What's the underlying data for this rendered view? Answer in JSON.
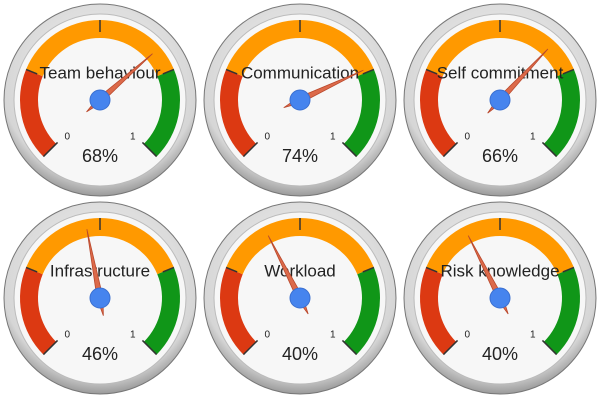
{
  "chart_data": [
    {
      "type": "gauge",
      "title": "Team behaviour",
      "values": [
        0.68
      ],
      "value_labels": [
        "68%"
      ],
      "range": [
        0,
        1
      ],
      "ticks": [
        0,
        1
      ],
      "unlabeled_ticks": [
        0.25,
        0.5,
        0.75
      ],
      "zones": [
        {
          "from": 0,
          "to": 0.25,
          "color": "#dc3912"
        },
        {
          "from": 0.25,
          "to": 0.75,
          "color": "#ff9900"
        },
        {
          "from": 0.75,
          "to": 1,
          "color": "#109618"
        }
      ]
    },
    {
      "type": "gauge",
      "title": "Communication",
      "values": [
        0.74
      ],
      "value_labels": [
        "74%"
      ],
      "range": [
        0,
        1
      ],
      "ticks": [
        0,
        1
      ],
      "unlabeled_ticks": [
        0.25,
        0.5,
        0.75
      ],
      "zones": [
        {
          "from": 0,
          "to": 0.25,
          "color": "#dc3912"
        },
        {
          "from": 0.25,
          "to": 0.75,
          "color": "#ff9900"
        },
        {
          "from": 0.75,
          "to": 1,
          "color": "#109618"
        }
      ]
    },
    {
      "type": "gauge",
      "title": "Self commitment",
      "values": [
        0.66
      ],
      "value_labels": [
        "66%"
      ],
      "range": [
        0,
        1
      ],
      "ticks": [
        0,
        1
      ],
      "unlabeled_ticks": [
        0.25,
        0.5,
        0.75
      ],
      "zones": [
        {
          "from": 0,
          "to": 0.25,
          "color": "#dc3912"
        },
        {
          "from": 0.25,
          "to": 0.75,
          "color": "#ff9900"
        },
        {
          "from": 0.75,
          "to": 1,
          "color": "#109618"
        }
      ]
    },
    {
      "type": "gauge",
      "title": "Infrastructure",
      "values": [
        0.46
      ],
      "value_labels": [
        "46%"
      ],
      "range": [
        0,
        1
      ],
      "ticks": [
        0,
        1
      ],
      "unlabeled_ticks": [
        0.25,
        0.5,
        0.75
      ],
      "zones": [
        {
          "from": 0,
          "to": 0.25,
          "color": "#dc3912"
        },
        {
          "from": 0.25,
          "to": 0.75,
          "color": "#ff9900"
        },
        {
          "from": 0.75,
          "to": 1,
          "color": "#109618"
        }
      ]
    },
    {
      "type": "gauge",
      "title": "Workload",
      "values": [
        0.4
      ],
      "value_labels": [
        "40%"
      ],
      "range": [
        0,
        1
      ],
      "ticks": [
        0,
        1
      ],
      "unlabeled_ticks": [
        0.25,
        0.5,
        0.75
      ],
      "zones": [
        {
          "from": 0,
          "to": 0.25,
          "color": "#dc3912"
        },
        {
          "from": 0.25,
          "to": 0.75,
          "color": "#ff9900"
        },
        {
          "from": 0.75,
          "to": 1,
          "color": "#109618"
        }
      ]
    },
    {
      "type": "gauge",
      "title": "Risk knowledge",
      "values": [
        0.4
      ],
      "value_labels": [
        "40%"
      ],
      "range": [
        0,
        1
      ],
      "ticks": [
        0,
        1
      ],
      "unlabeled_ticks": [
        0.25,
        0.5,
        0.75
      ],
      "zones": [
        {
          "from": 0,
          "to": 0.25,
          "color": "#dc3912"
        },
        {
          "from": 0.25,
          "to": 0.75,
          "color": "#ff9900"
        },
        {
          "from": 0.75,
          "to": 1,
          "color": "#109618"
        }
      ]
    }
  ]
}
